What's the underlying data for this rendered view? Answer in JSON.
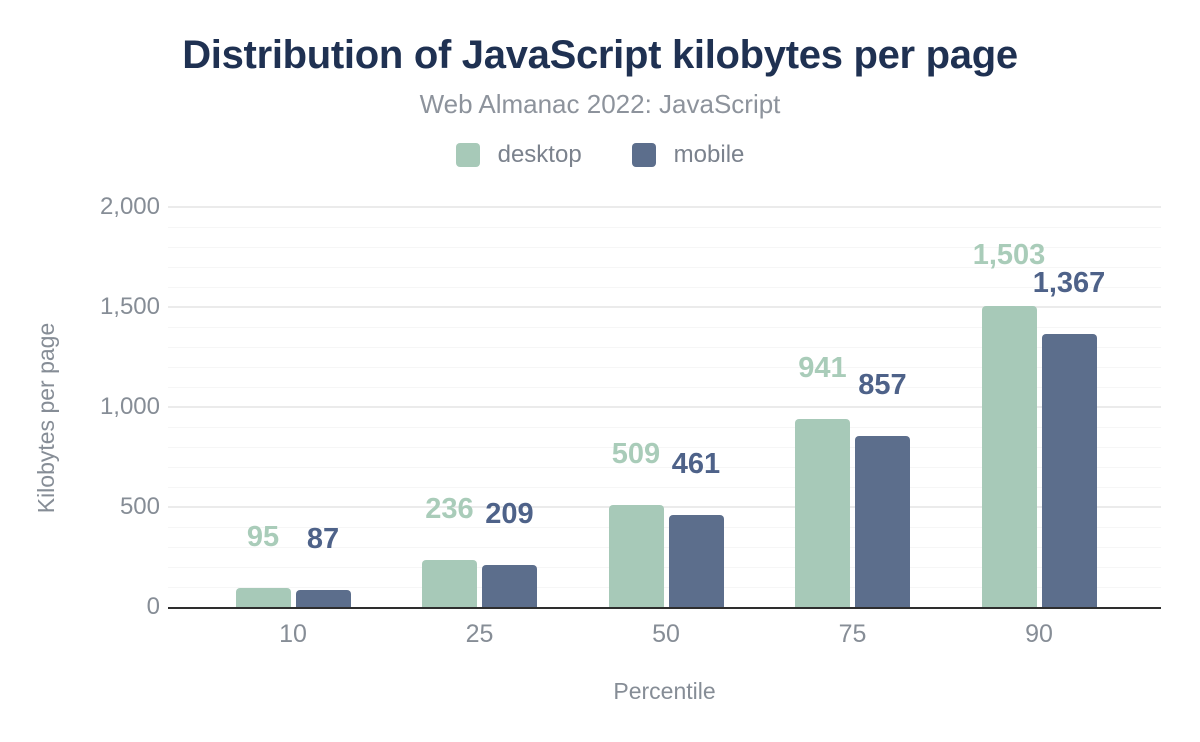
{
  "chart_data": {
    "type": "bar",
    "title": "Distribution of JavaScript kilobytes per page",
    "subtitle": "Web Almanac 2022: JavaScript",
    "xlabel": "Percentile",
    "ylabel": "Kilobytes per page",
    "categories": [
      "10",
      "25",
      "50",
      "75",
      "90"
    ],
    "series": [
      {
        "name": "desktop",
        "color": "#a7c9b8",
        "label_color": "#a9ccb9",
        "values": [
          95,
          236,
          509,
          941,
          1503
        ],
        "value_labels": [
          "95",
          "236",
          "509",
          "941",
          "1,503"
        ]
      },
      {
        "name": "mobile",
        "color": "#5c6e8c",
        "label_color": "#4e6289",
        "values": [
          87,
          209,
          461,
          857,
          1367
        ],
        "value_labels": [
          "87",
          "209",
          "461",
          "857",
          "1,367"
        ]
      }
    ],
    "ylim": [
      0,
      2000
    ],
    "y_major_step": 500,
    "y_minor_step": 100,
    "y_tick_labels": [
      "0",
      "500",
      "1,000",
      "1,500",
      "2,000"
    ],
    "grid": "horizontal",
    "legend_position": "top-center"
  },
  "colors": {
    "background": "#ffffff",
    "title": "#1f3152",
    "subtitle": "#8d939c",
    "legend_text": "#7b828d",
    "axis_text": "#868d96",
    "axis_line": "#2e2e2e",
    "grid_major": "#ebebeb",
    "grid_minor": "#f6f6f6"
  }
}
